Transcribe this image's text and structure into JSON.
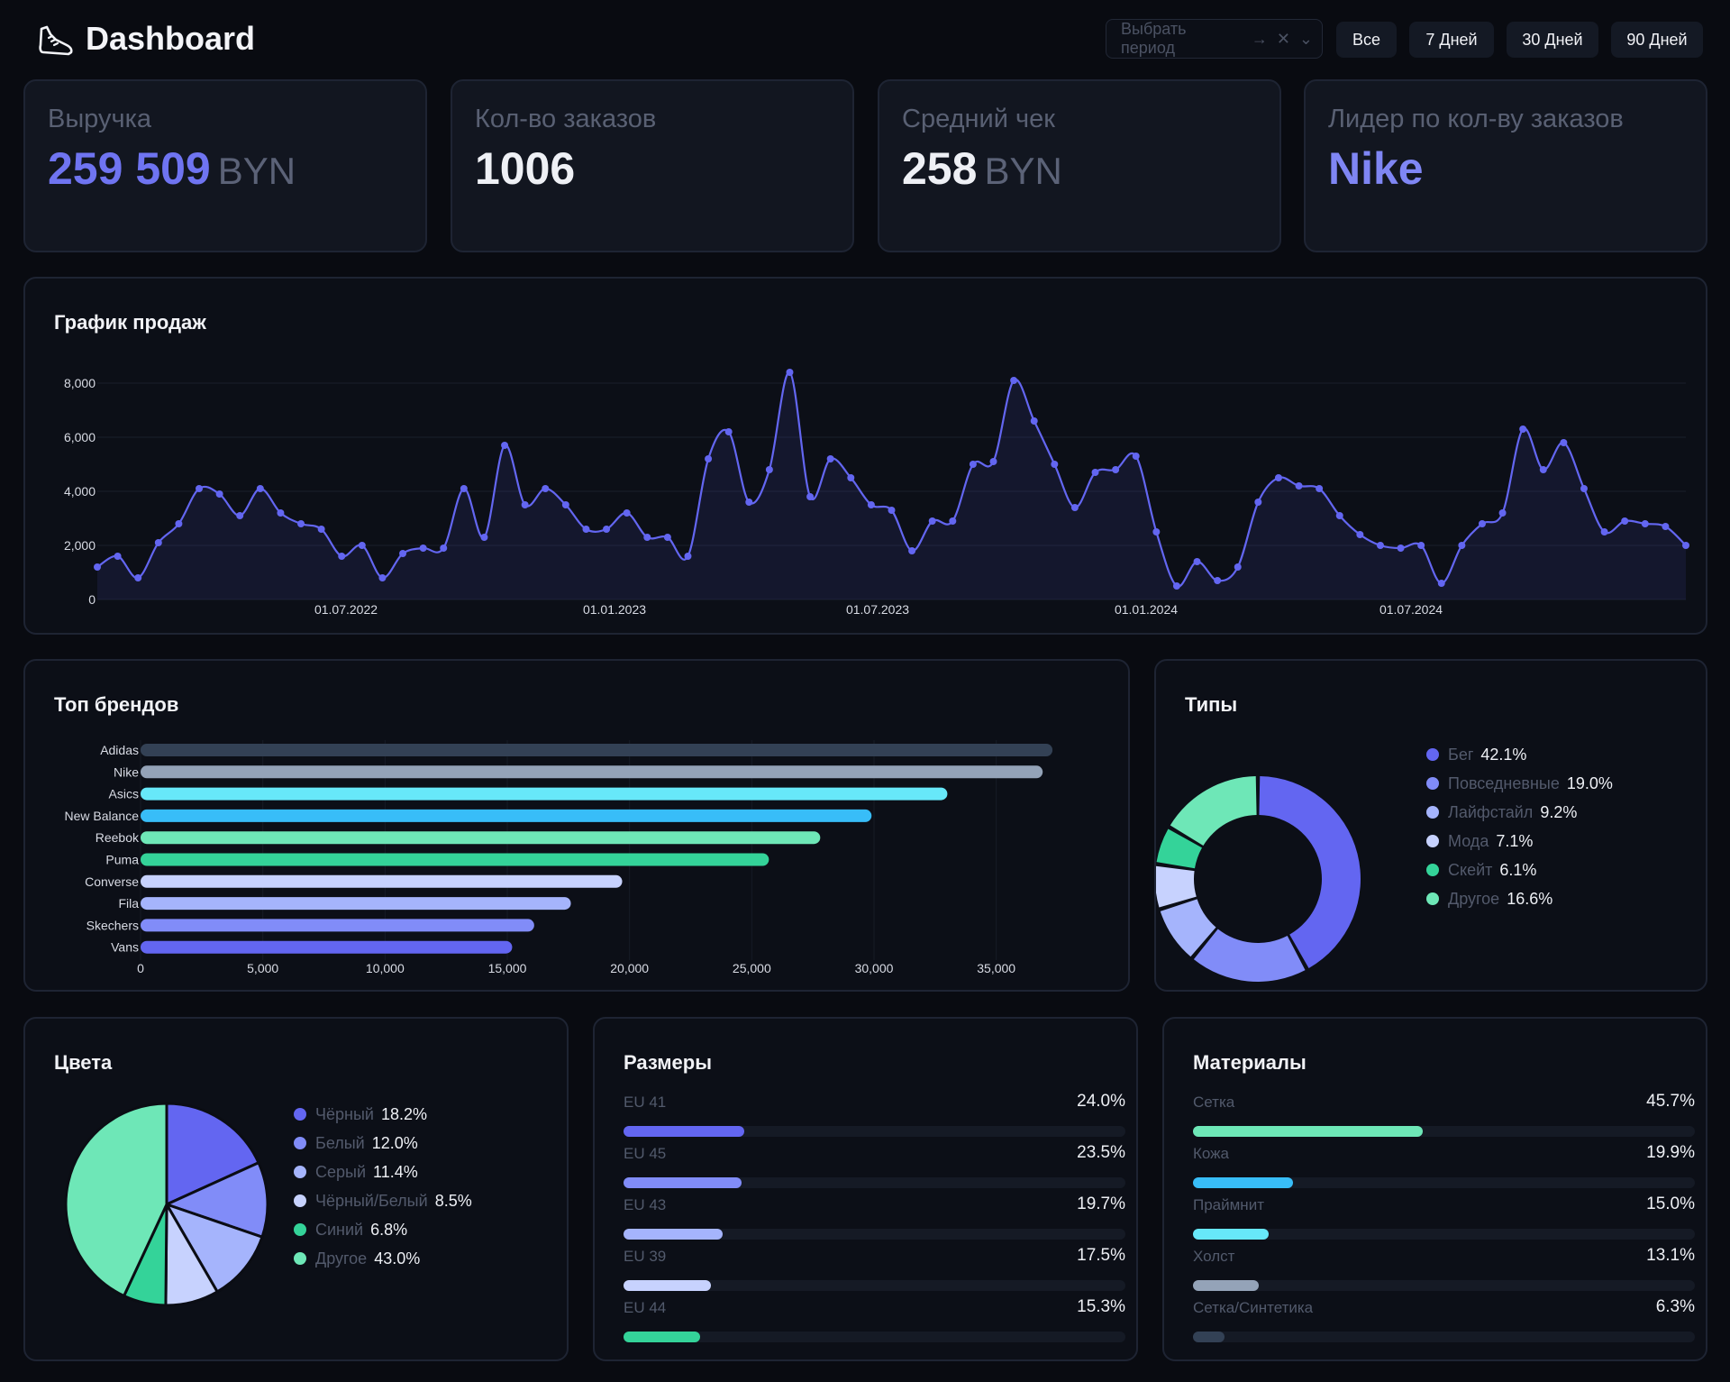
{
  "header": {
    "title": "Dashboard",
    "logo_icon": "sneaker-icon",
    "period_placeholder": "Выбрать период",
    "filters": [
      "Все",
      "7 Дней",
      "30 Дней",
      "90 Дней"
    ]
  },
  "kpis": [
    {
      "label": "Выручка",
      "value": "259 509",
      "unit": "BYN",
      "value_color": "#6f74f1"
    },
    {
      "label": "Кол-во заказов",
      "value": "1006",
      "unit": "",
      "value_color": "#eef0f5"
    },
    {
      "label": "Средний чек",
      "value": "258",
      "unit": "BYN",
      "value_color": "#eef0f5"
    },
    {
      "label": "Лидер по кол-ву заказов",
      "value": "Nike",
      "unit": "",
      "value_color": "#7f86f4"
    }
  ],
  "sales": {
    "title": "График продаж",
    "chart_data": {
      "type": "area",
      "x_tick_labels": [
        "01.07.2022",
        "01.01.2023",
        "01.07.2023",
        "01.01.2024",
        "01.07.2024"
      ],
      "y_tick_labels": [
        "0",
        "2,000",
        "4,000",
        "6,000",
        "8,000"
      ],
      "ylim": [
        0,
        8000
      ],
      "grid": true,
      "color": "#6366f1",
      "values": [
        1200,
        1600,
        800,
        2100,
        2800,
        4100,
        3900,
        3100,
        4100,
        3200,
        2800,
        2600,
        1600,
        2000,
        800,
        1700,
        1900,
        1900,
        4100,
        2300,
        5700,
        3500,
        4100,
        3500,
        2600,
        2600,
        3200,
        2300,
        2300,
        1600,
        5200,
        6200,
        3600,
        4800,
        8400,
        3800,
        5200,
        4500,
        3500,
        3300,
        1800,
        2900,
        2900,
        5000,
        5100,
        8100,
        6600,
        5000,
        3400,
        4700,
        4800,
        5300,
        2500,
        500,
        1400,
        700,
        1200,
        3600,
        4500,
        4200,
        4100,
        3100,
        2400,
        2000,
        1900,
        2000,
        600,
        2000,
        2800,
        3200,
        6300,
        4800,
        5800,
        4100,
        2500,
        2900,
        2800,
        2700,
        2000
      ]
    }
  },
  "brands": {
    "title": "Топ брендов",
    "chart_data": {
      "type": "bar",
      "orientation": "horizontal",
      "categories": [
        "Adidas",
        "Nike",
        "Asics",
        "New Balance",
        "Reebok",
        "Puma",
        "Converse",
        "Fila",
        "Skechers",
        "Vans"
      ],
      "values": [
        37300,
        36900,
        33000,
        29900,
        27800,
        25700,
        19700,
        17600,
        16100,
        15200
      ],
      "colors": [
        "#334155",
        "#94a3b8",
        "#67e8f9",
        "#38bdf8",
        "#6ee7b7",
        "#34d399",
        "#c7d2fe",
        "#a5b4fc",
        "#818cf8",
        "#6366f1"
      ],
      "xlim": [
        0,
        37500
      ],
      "x_tick_labels": [
        "0",
        "5,000",
        "10,000",
        "15,000",
        "20,000",
        "25,000",
        "30,000",
        "35,000"
      ],
      "grid": true
    }
  },
  "types": {
    "title": "Типы",
    "chart_data": {
      "type": "pie",
      "donut": true,
      "categories": [
        "Бег",
        "Повседневные",
        "Лайфстайл",
        "Мода",
        "Скейт",
        "Другое"
      ],
      "values": [
        42.1,
        19.0,
        9.2,
        7.1,
        6.1,
        16.6
      ],
      "value_labels": [
        "42.1%",
        "19.0%",
        "9.2%",
        "7.1%",
        "6.1%",
        "16.6%"
      ],
      "colors": [
        "#6366f1",
        "#818cf8",
        "#a5b4fc",
        "#c7d2fe",
        "#34d399",
        "#6ee7b7"
      ],
      "legend": "right"
    }
  },
  "colors_chart": {
    "title": "Цвета",
    "chart_data": {
      "type": "pie",
      "categories": [
        "Чёрный",
        "Белый",
        "Серый",
        "Чёрный/Белый",
        "Синий",
        "Другое"
      ],
      "values": [
        18.2,
        12.0,
        11.4,
        8.5,
        6.8,
        43.0
      ],
      "value_labels": [
        "18.2%",
        "12.0%",
        "11.4%",
        "8.5%",
        "6.8%",
        "43.0%"
      ],
      "colors": [
        "#6366f1",
        "#818cf8",
        "#a5b4fc",
        "#c7d2fe",
        "#34d399",
        "#6ee7b7"
      ],
      "legend": "right"
    }
  },
  "sizes": {
    "title": "Размеры",
    "items": [
      {
        "label": "EU 41",
        "value": "24.0%",
        "fraction": 0.24,
        "color": "#6366f1"
      },
      {
        "label": "EU 45",
        "value": "23.5%",
        "fraction": 0.235,
        "color": "#818cf8"
      },
      {
        "label": "EU 43",
        "value": "19.7%",
        "fraction": 0.197,
        "color": "#a5b4fc"
      },
      {
        "label": "EU 39",
        "value": "17.5%",
        "fraction": 0.175,
        "color": "#c7d2fe"
      },
      {
        "label": "EU 44",
        "value": "15.3%",
        "fraction": 0.153,
        "color": "#34d399"
      }
    ]
  },
  "materials": {
    "title": "Материалы",
    "items": [
      {
        "label": "Сетка",
        "value": "45.7%",
        "fraction": 0.457,
        "color": "#6ee7b7"
      },
      {
        "label": "Кожа",
        "value": "19.9%",
        "fraction": 0.199,
        "color": "#38bdf8"
      },
      {
        "label": "Праймнит",
        "value": "15.0%",
        "fraction": 0.15,
        "color": "#67e8f9"
      },
      {
        "label": "Холст",
        "value": "13.1%",
        "fraction": 0.131,
        "color": "#94a3b8"
      },
      {
        "label": "Сетка/Синтетика",
        "value": "6.3%",
        "fraction": 0.063,
        "color": "#334155"
      }
    ]
  }
}
